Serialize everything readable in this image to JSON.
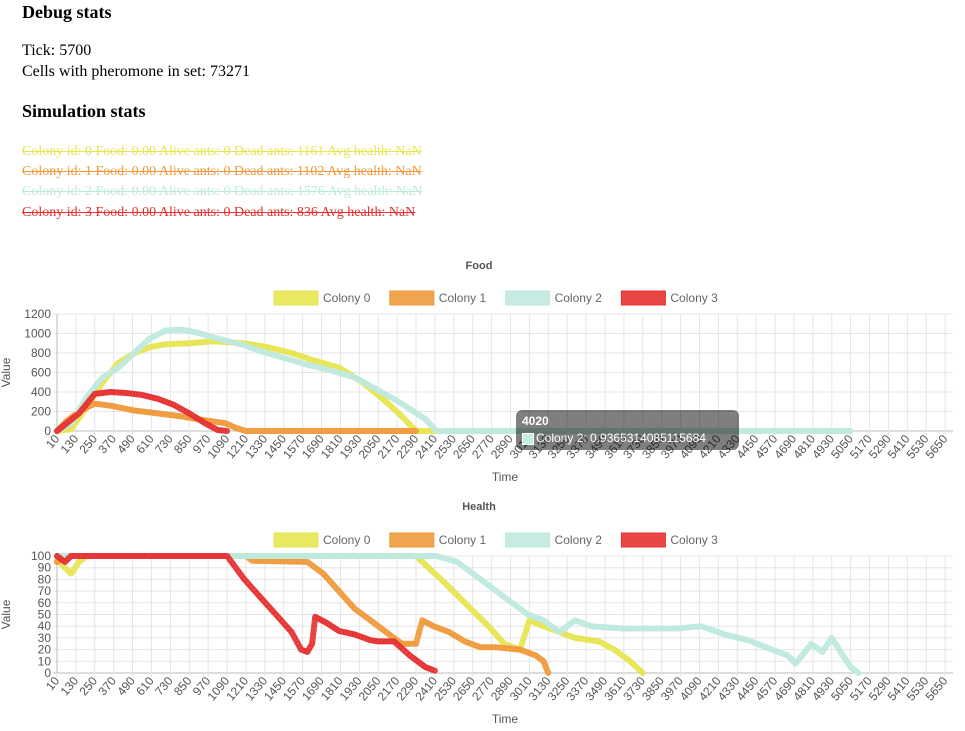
{
  "debug": {
    "title": "Debug stats",
    "tick": "Tick: 5700",
    "pheromone": "Cells with pheromone in set: 73271"
  },
  "simulation": {
    "title": "Simulation stats",
    "colonies": [
      {
        "text": "Colony id: 0 Food: 0.00 Alive ants: 0 Dead ants: 1161 Avg health: NaN",
        "color": "#e7e552"
      },
      {
        "text": "Colony id: 1 Food: 0.00 Alive ants: 0 Dead ants: 1102 Avg health: NaN",
        "color": "#f09a3c"
      },
      {
        "text": "Colony id: 2 Food: 0.00 Alive ants: 0 Dead ants: 1576 Avg health: NaN",
        "color": "#bfe9df"
      },
      {
        "text": "Colony id: 3 Food: 0.00 Alive ants: 0 Dead ants: 836 Avg health: NaN",
        "color": "#e63131"
      }
    ]
  },
  "tooltip": {
    "title": "4020",
    "body": "Colony 2: 0.9365314085115684"
  },
  "chart_data": [
    {
      "type": "line",
      "title": "Food",
      "xlabel": "Time",
      "ylabel": "Value",
      "ylim": [
        0,
        1200
      ],
      "yticks": [
        0,
        200,
        400,
        600,
        800,
        1000,
        1200
      ],
      "xticks": [
        "10",
        "130",
        "250",
        "370",
        "490",
        "610",
        "730",
        "850",
        "970",
        "1090",
        "1210",
        "1330",
        "1450",
        "1570",
        "1690",
        "1810",
        "1930",
        "2050",
        "2170",
        "2290",
        "2410",
        "2530",
        "2650",
        "2770",
        "2890",
        "3010",
        "3130",
        "3250",
        "3370",
        "3490",
        "3610",
        "3730",
        "3850",
        "3970",
        "4090",
        "4210",
        "4330",
        "4450",
        "4570",
        "4690",
        "4810",
        "4930",
        "5050",
        "5170",
        "5290",
        "5410",
        "5530",
        "5650"
      ],
      "xlim": [
        10,
        5700
      ],
      "legend_position": "top",
      "grid": true,
      "series": [
        {
          "name": "Colony 0",
          "color": "#e7e552",
          "points": [
            [
              10,
              0
            ],
            [
              100,
              20
            ],
            [
              200,
              250
            ],
            [
              300,
              500
            ],
            [
              400,
              700
            ],
            [
              500,
              800
            ],
            [
              600,
              860
            ],
            [
              700,
              890
            ],
            [
              850,
              900
            ],
            [
              1000,
              920
            ],
            [
              1100,
              910
            ],
            [
              1200,
              900
            ],
            [
              1350,
              860
            ],
            [
              1500,
              800
            ],
            [
              1650,
              720
            ],
            [
              1800,
              650
            ],
            [
              1950,
              500
            ],
            [
              2100,
              300
            ],
            [
              2200,
              150
            ],
            [
              2290,
              0
            ],
            [
              3950,
              0
            ]
          ]
        },
        {
          "name": "Colony 1",
          "color": "#f09a3c",
          "points": [
            [
              10,
              0
            ],
            [
              70,
              100
            ],
            [
              150,
              200
            ],
            [
              250,
              280
            ],
            [
              350,
              260
            ],
            [
              500,
              210
            ],
            [
              650,
              180
            ],
            [
              800,
              150
            ],
            [
              950,
              110
            ],
            [
              1080,
              80
            ],
            [
              1150,
              30
            ],
            [
              1210,
              0
            ],
            [
              2290,
              0
            ]
          ]
        },
        {
          "name": "Colony 2",
          "color": "#bfe9df",
          "points": [
            [
              10,
              0
            ],
            [
              100,
              80
            ],
            [
              200,
              350
            ],
            [
              300,
              550
            ],
            [
              400,
              650
            ],
            [
              500,
              800
            ],
            [
              600,
              950
            ],
            [
              700,
              1030
            ],
            [
              800,
              1040
            ],
            [
              900,
              1010
            ],
            [
              1000,
              960
            ],
            [
              1100,
              920
            ],
            [
              1200,
              880
            ],
            [
              1300,
              820
            ],
            [
              1450,
              750
            ],
            [
              1600,
              680
            ],
            [
              1750,
              620
            ],
            [
              1900,
              550
            ],
            [
              2050,
              420
            ],
            [
              2200,
              280
            ],
            [
              2350,
              120
            ],
            [
              2420,
              0
            ],
            [
              4020,
              0.94
            ],
            [
              5050,
              0
            ]
          ]
        },
        {
          "name": "Colony 3",
          "color": "#e63131",
          "points": [
            [
              10,
              0
            ],
            [
              150,
              180
            ],
            [
              250,
              380
            ],
            [
              350,
              400
            ],
            [
              450,
              390
            ],
            [
              550,
              370
            ],
            [
              650,
              330
            ],
            [
              750,
              270
            ],
            [
              850,
              180
            ],
            [
              950,
              80
            ],
            [
              1030,
              10
            ],
            [
              1090,
              0
            ]
          ]
        }
      ]
    },
    {
      "type": "line",
      "title": "Health",
      "xlabel": "Time",
      "ylabel": "Value",
      "ylim": [
        0,
        100
      ],
      "yticks": [
        0,
        10,
        20,
        30,
        40,
        50,
        60,
        70,
        80,
        90,
        100
      ],
      "xticks": [
        "10",
        "130",
        "250",
        "370",
        "490",
        "610",
        "730",
        "850",
        "970",
        "1090",
        "1210",
        "1330",
        "1450",
        "1570",
        "1690",
        "1810",
        "1930",
        "2050",
        "2170",
        "2290",
        "2410",
        "2530",
        "2650",
        "2770",
        "2890",
        "3010",
        "3130",
        "3250",
        "3370",
        "3490",
        "3610",
        "3730",
        "3850",
        "3970",
        "4090",
        "4210",
        "4330",
        "4450",
        "4570",
        "4690",
        "4810",
        "4930",
        "5050",
        "5170",
        "5290",
        "5410",
        "5530",
        "5650"
      ],
      "xlim": [
        10,
        5700
      ],
      "legend_position": "top",
      "grid": true,
      "series": [
        {
          "name": "Colony 0",
          "color": "#e7e552",
          "points": [
            [
              10,
              97
            ],
            [
              60,
              90
            ],
            [
              100,
              85
            ],
            [
              150,
              95
            ],
            [
              200,
              100
            ],
            [
              2290,
              100
            ],
            [
              2450,
              80
            ],
            [
              2600,
              60
            ],
            [
              2750,
              40
            ],
            [
              2850,
              25
            ],
            [
              2950,
              20
            ],
            [
              3010,
              45
            ],
            [
              3100,
              40
            ],
            [
              3200,
              35
            ],
            [
              3300,
              30
            ],
            [
              3450,
              27
            ],
            [
              3550,
              20
            ],
            [
              3650,
              10
            ],
            [
              3730,
              0
            ]
          ]
        },
        {
          "name": "Colony 1",
          "color": "#f09a3c",
          "points": [
            [
              10,
              95
            ],
            [
              80,
              100
            ],
            [
              1210,
              100
            ],
            [
              1250,
              96
            ],
            [
              1600,
              95
            ],
            [
              1700,
              85
            ],
            [
              1800,
              70
            ],
            [
              1900,
              55
            ],
            [
              2000,
              45
            ],
            [
              2100,
              35
            ],
            [
              2200,
              25
            ],
            [
              2290,
              25
            ],
            [
              2330,
              45
            ],
            [
              2400,
              40
            ],
            [
              2500,
              35
            ],
            [
              2600,
              27
            ],
            [
              2700,
              22
            ],
            [
              2800,
              22
            ],
            [
              2950,
              20
            ],
            [
              3050,
              15
            ],
            [
              3100,
              10
            ],
            [
              3130,
              0
            ]
          ]
        },
        {
          "name": "Colony 2",
          "color": "#bfe9df",
          "points": [
            [
              10,
              100
            ],
            [
              2420,
              100
            ],
            [
              2550,
              95
            ],
            [
              2700,
              80
            ],
            [
              2850,
              65
            ],
            [
              3000,
              50
            ],
            [
              3100,
              45
            ],
            [
              3200,
              35
            ],
            [
              3300,
              45
            ],
            [
              3400,
              40
            ],
            [
              3600,
              38
            ],
            [
              3800,
              38
            ],
            [
              3950,
              38
            ],
            [
              4100,
              40
            ],
            [
              4250,
              33
            ],
            [
              4400,
              28
            ],
            [
              4550,
              20
            ],
            [
              4650,
              15
            ],
            [
              4700,
              8
            ],
            [
              4800,
              25
            ],
            [
              4870,
              18
            ],
            [
              4930,
              30
            ],
            [
              5000,
              15
            ],
            [
              5050,
              5
            ],
            [
              5100,
              0
            ]
          ]
        },
        {
          "name": "Colony 3",
          "color": "#e63131",
          "points": [
            [
              10,
              100
            ],
            [
              60,
              95
            ],
            [
              100,
              100
            ],
            [
              1090,
              100
            ],
            [
              1200,
              80
            ],
            [
              1300,
              65
            ],
            [
              1400,
              50
            ],
            [
              1500,
              35
            ],
            [
              1560,
              20
            ],
            [
              1600,
              18
            ],
            [
              1630,
              25
            ],
            [
              1650,
              48
            ],
            [
              1720,
              43
            ],
            [
              1800,
              36
            ],
            [
              1900,
              33
            ],
            [
              2000,
              28
            ],
            [
              2050,
              27
            ],
            [
              2150,
              27
            ],
            [
              2250,
              15
            ],
            [
              2300,
              10
            ],
            [
              2350,
              5
            ],
            [
              2410,
              2
            ]
          ]
        }
      ]
    }
  ]
}
